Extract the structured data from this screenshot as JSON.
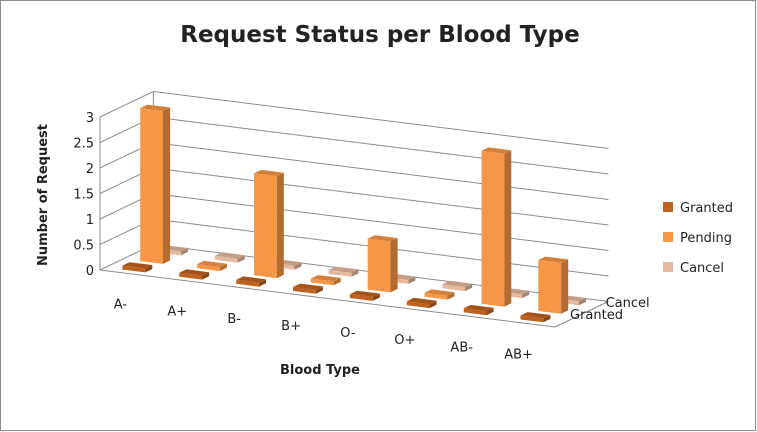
{
  "chart_data": {
    "type": "bar",
    "subtype": "3d-clustered-column",
    "title": "Request Status per Blood Type",
    "xlabel": "Blood Type",
    "ylabel": "Number of Request",
    "categories": [
      "A-",
      "A+",
      "B-",
      "B+",
      "O-",
      "O+",
      "AB-",
      "AB+"
    ],
    "depth_labels": [
      "Cancel",
      "Granted"
    ],
    "yticks": [
      "0",
      "0.5",
      "1",
      "1.5",
      "2",
      "2.5",
      "3"
    ],
    "ylim": [
      0,
      3
    ],
    "grid": true,
    "legend_position": "right",
    "series": [
      {
        "name": "Granted",
        "values": [
          0,
          0,
          0,
          0,
          0,
          0,
          0,
          0
        ],
        "color": "#c0621f"
      },
      {
        "name": "Pending",
        "values": [
          3,
          0,
          2,
          0,
          1,
          0,
          3,
          1
        ],
        "color": "#f79646"
      },
      {
        "name": "Cancel",
        "values": [
          0,
          0,
          0,
          0,
          0,
          0,
          0,
          0
        ],
        "color": "#e6b9a0"
      }
    ]
  }
}
